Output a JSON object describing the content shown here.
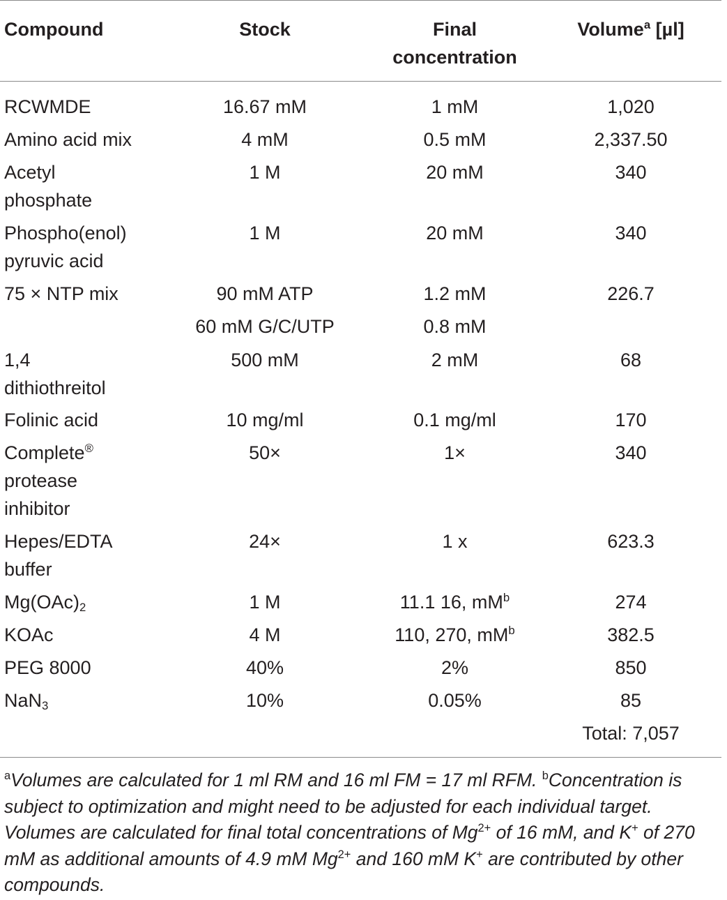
{
  "table": {
    "headers": {
      "compound": "Compound",
      "stock": "Stock",
      "final_line1": "Final",
      "final_line2": "concentration",
      "volume_main": "Volume",
      "volume_sup": "a",
      "volume_unit": " [µl]"
    },
    "rows": [
      {
        "compound": [
          "RCWMDE"
        ],
        "stock": [
          "16.67 mM"
        ],
        "final": [
          "1 mM"
        ],
        "volume": [
          "1,020"
        ]
      },
      {
        "compound": [
          "Amino acid mix"
        ],
        "stock": [
          "4 mM"
        ],
        "final": [
          "0.5 mM"
        ],
        "volume": [
          "2,337.50"
        ]
      },
      {
        "compound": [
          "Acetyl",
          "phosphate"
        ],
        "stock": [
          "1 M"
        ],
        "final": [
          "20 mM"
        ],
        "volume": [
          "340"
        ]
      },
      {
        "compound": [
          "Phospho(enol)",
          "pyruvic acid"
        ],
        "stock": [
          "1 M"
        ],
        "final": [
          "20 mM"
        ],
        "volume": [
          "340"
        ]
      },
      {
        "compound": [
          "75 × NTP mix"
        ],
        "stock": [
          "90 mM ATP",
          "60 mM G/C/UTP"
        ],
        "final": [
          "1.2 mM",
          "0.8 mM"
        ],
        "volume": [
          "226.7"
        ]
      },
      {
        "compound": [
          "1,4",
          "dithiothreitol"
        ],
        "stock": [
          "500 mM"
        ],
        "final": [
          "2 mM"
        ],
        "volume": [
          "68"
        ]
      },
      {
        "compound": [
          "Folinic acid"
        ],
        "stock": [
          "10 mg/ml"
        ],
        "final": [
          "0.1 mg/ml"
        ],
        "volume": [
          "170"
        ]
      },
      {
        "compound": [
          "Complete",
          "protease",
          "inhibitor"
        ],
        "compound_sup": "®",
        "stock": [
          "50×"
        ],
        "final": [
          "1×"
        ],
        "volume": [
          "340"
        ]
      },
      {
        "compound": [
          "Hepes/EDTA",
          "buffer"
        ],
        "stock": [
          "24×"
        ],
        "final": [
          "1 x"
        ],
        "volume": [
          "623.3"
        ]
      },
      {
        "compound": [
          "Mg(OAc)"
        ],
        "compound_sub": "2",
        "stock": [
          "1 M"
        ],
        "final": [
          "11.1 16, mM"
        ],
        "final_sup": "b",
        "volume": [
          "274"
        ]
      },
      {
        "compound": [
          "KOAc"
        ],
        "stock": [
          "4 M"
        ],
        "final": [
          "110, 270, mM"
        ],
        "final_sup": "b",
        "volume": [
          "382.5"
        ]
      },
      {
        "compound": [
          "PEG 8000"
        ],
        "stock": [
          "40%"
        ],
        "final": [
          "2%"
        ],
        "volume": [
          "850"
        ]
      },
      {
        "compound": [
          "NaN"
        ],
        "compound_sub": "3",
        "stock": [
          "10%"
        ],
        "final": [
          "0.05%"
        ],
        "volume": [
          "85"
        ]
      }
    ],
    "total": "Total: 7,057"
  },
  "footnote": {
    "a_mark": "a",
    "a_text": "Volumes are calculated for 1 ml RM and 16 ml FM = 17 ml RFM. ",
    "b_mark": "b",
    "b_text1": "Concentration is subject to optimization and might need to be adjusted for each individual target. Volumes are calculated for final total concentrations of Mg",
    "b_sup1": "2+",
    "b_text2": " of 16 mM, and K",
    "b_sup2": "+",
    "b_text3": " of 270 mM as additional amounts of 4.9 mM Mg",
    "b_sup3": "2+",
    "b_text4": " and 160 mM K",
    "b_sup4": "+",
    "b_text5": " are contributed by other compounds."
  }
}
